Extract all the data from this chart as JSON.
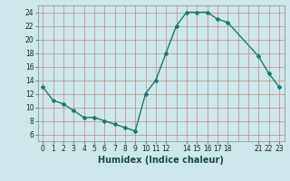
{
  "x": [
    0,
    1,
    2,
    3,
    4,
    5,
    6,
    7,
    8,
    9,
    10,
    11,
    12,
    13,
    14,
    15,
    16,
    17,
    18,
    21,
    22,
    23
  ],
  "y": [
    13,
    11,
    10.5,
    9.5,
    8.5,
    8.5,
    8,
    7.5,
    7,
    6.5,
    12,
    14,
    18,
    22,
    24,
    24,
    24,
    23,
    22.5,
    17.5,
    15,
    13
  ],
  "xlim": [
    -0.5,
    23.5
  ],
  "ylim": [
    5,
    25
  ],
  "yticks": [
    6,
    8,
    10,
    12,
    14,
    16,
    18,
    20,
    22,
    24
  ],
  "xticks": [
    0,
    1,
    2,
    3,
    4,
    5,
    6,
    7,
    8,
    9,
    10,
    11,
    12,
    14,
    15,
    16,
    17,
    18,
    21,
    22,
    23
  ],
  "xlabel": "Humidex (Indice chaleur)",
  "line_color": "#1a7a6e",
  "marker_color": "#1a7a6e",
  "bg_color": "#cce8ea",
  "grid_color_v": "#c08080",
  "grid_color_h": "#c08080",
  "title": ""
}
